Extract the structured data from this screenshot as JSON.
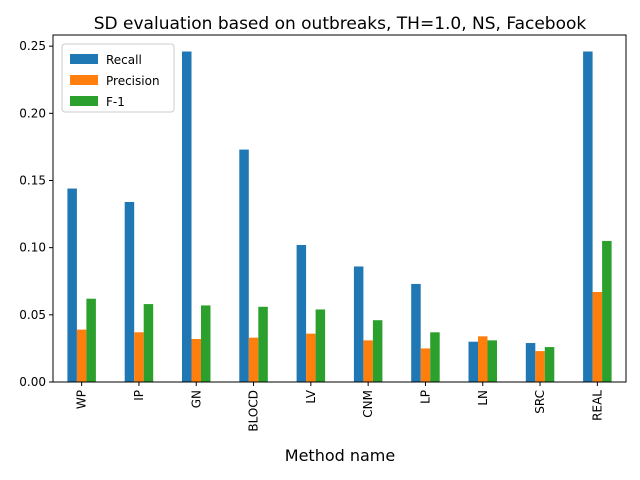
{
  "chart_data": {
    "type": "bar",
    "title": "SD evaluation based on outbreaks, TH=1.0, NS, Facebook",
    "xlabel": "Method name",
    "ylabel": "",
    "categories": [
      "WP",
      "IP",
      "GN",
      "BLOCD",
      "LV",
      "CNM",
      "LP",
      "LN",
      "SRC",
      "REAL"
    ],
    "series": [
      {
        "name": "Recall",
        "color": "#1f77b4",
        "values": [
          0.144,
          0.134,
          0.246,
          0.173,
          0.102,
          0.086,
          0.073,
          0.03,
          0.029,
          0.246
        ]
      },
      {
        "name": "Precision",
        "color": "#ff7f0e",
        "values": [
          0.039,
          0.037,
          0.032,
          0.033,
          0.036,
          0.031,
          0.025,
          0.034,
          0.023,
          0.067
        ]
      },
      {
        "name": "F-1",
        "color": "#2ca02c",
        "values": [
          0.062,
          0.058,
          0.057,
          0.056,
          0.054,
          0.046,
          0.037,
          0.031,
          0.026,
          0.105
        ]
      }
    ],
    "ylim": [
      0,
      0.2583
    ],
    "yticks": [
      "0.00",
      "0.05",
      "0.10",
      "0.15",
      "0.20",
      "0.25"
    ],
    "legend_position": "top-left",
    "grid": false
  }
}
